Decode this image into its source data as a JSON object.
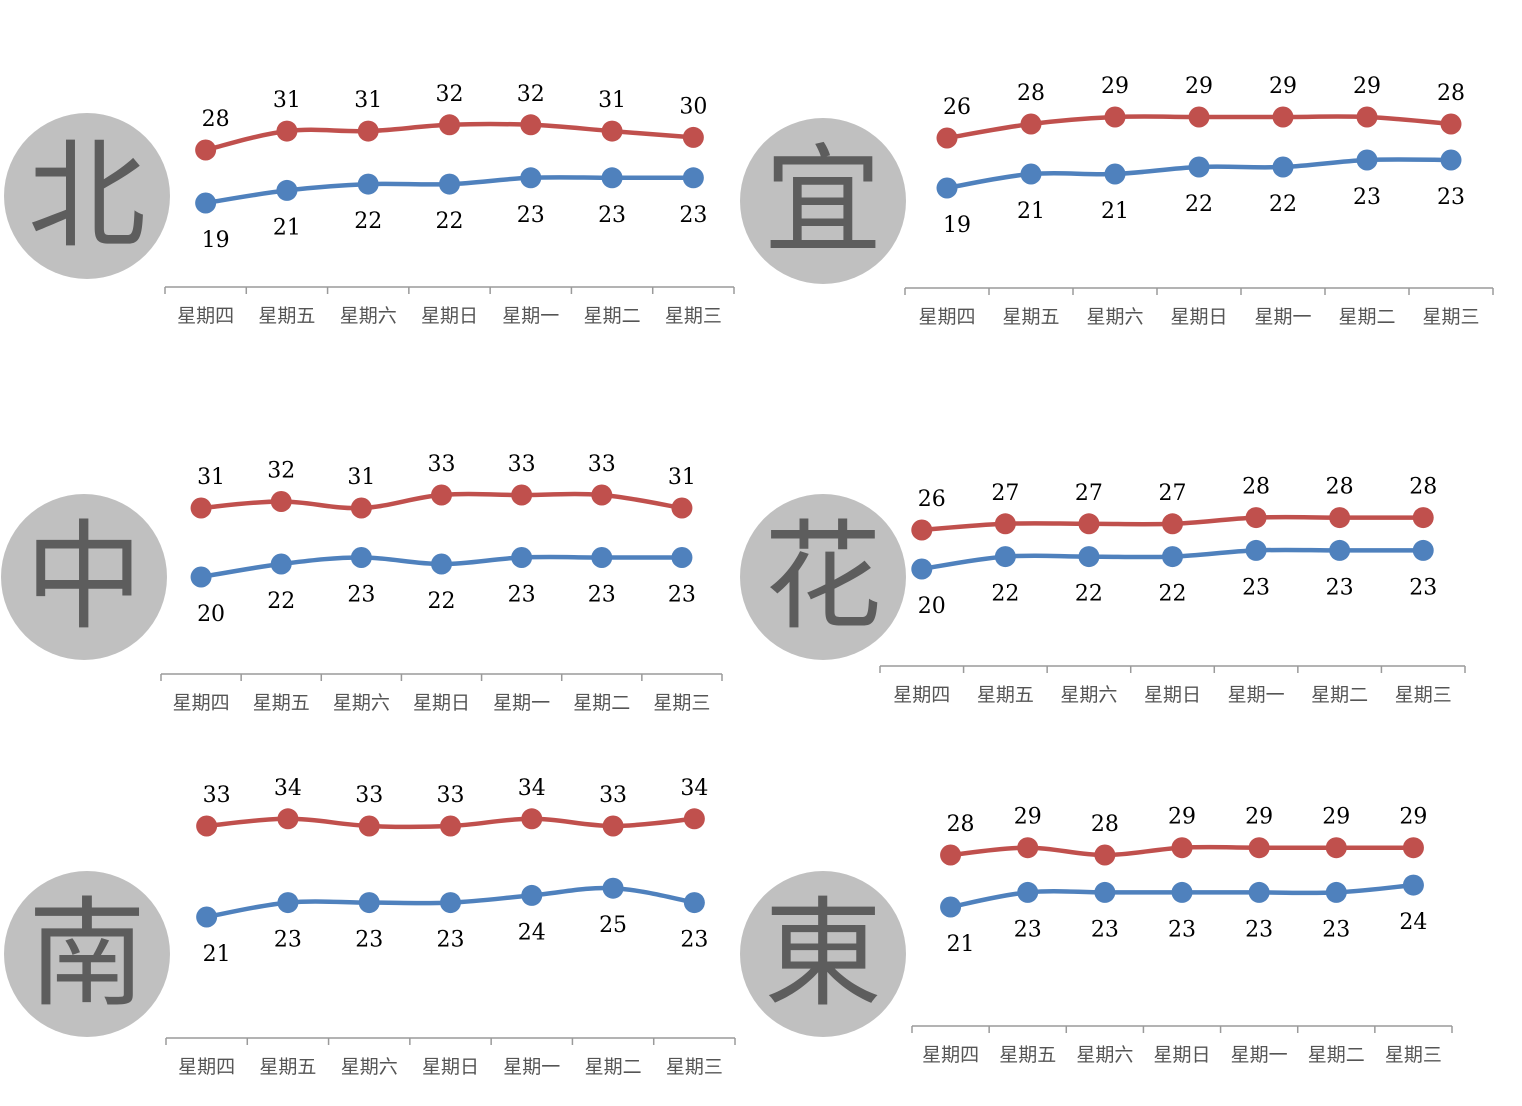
{
  "colors": {
    "high": "#c0504d",
    "low": "#4f81bd",
    "axis": "#9a9a9a",
    "badge": "#c0c0c0",
    "badge_text": "#5d5d5d"
  },
  "chart_data": [
    {
      "type": "line",
      "region": "北",
      "categories": [
        "星期四",
        "星期五",
        "星期六",
        "星期日",
        "星期一",
        "星期二",
        "星期三"
      ],
      "series": [
        {
          "values": [
            28,
            31,
            31,
            32,
            32,
            31,
            30
          ]
        },
        {
          "values": [
            19,
            21,
            22,
            22,
            23,
            23,
            23
          ]
        }
      ]
    },
    {
      "type": "line",
      "region": "宜",
      "categories": [
        "星期四",
        "星期五",
        "星期六",
        "星期日",
        "星期一",
        "星期二",
        "星期三"
      ],
      "series": [
        {
          "values": [
            26,
            28,
            29,
            29,
            29,
            29,
            28
          ]
        },
        {
          "values": [
            19,
            21,
            21,
            22,
            22,
            23,
            23
          ]
        }
      ]
    },
    {
      "type": "line",
      "region": "中",
      "categories": [
        "星期四",
        "星期五",
        "星期六",
        "星期日",
        "星期一",
        "星期二",
        "星期三"
      ],
      "series": [
        {
          "values": [
            31,
            32,
            31,
            33,
            33,
            33,
            31
          ]
        },
        {
          "values": [
            20,
            22,
            23,
            22,
            23,
            23,
            23
          ]
        }
      ]
    },
    {
      "type": "line",
      "region": "花",
      "categories": [
        "星期四",
        "星期五",
        "星期六",
        "星期日",
        "星期一",
        "星期二",
        "星期三"
      ],
      "series": [
        {
          "values": [
            26,
            27,
            27,
            27,
            28,
            28,
            28
          ]
        },
        {
          "values": [
            20,
            22,
            22,
            22,
            23,
            23,
            23
          ]
        }
      ]
    },
    {
      "type": "line",
      "region": "南",
      "categories": [
        "星期四",
        "星期五",
        "星期六",
        "星期日",
        "星期一",
        "星期二",
        "星期三"
      ],
      "series": [
        {
          "values": [
            33,
            34,
            33,
            33,
            34,
            33,
            34
          ]
        },
        {
          "values": [
            21,
            23,
            23,
            23,
            24,
            25,
            23
          ]
        }
      ]
    },
    {
      "type": "line",
      "region": "東",
      "categories": [
        "星期四",
        "星期五",
        "星期六",
        "星期日",
        "星期一",
        "星期二",
        "星期三"
      ],
      "series": [
        {
          "values": [
            28,
            29,
            28,
            29,
            29,
            29,
            29
          ]
        },
        {
          "values": [
            21,
            23,
            23,
            23,
            23,
            23,
            24
          ]
        }
      ]
    }
  ]
}
